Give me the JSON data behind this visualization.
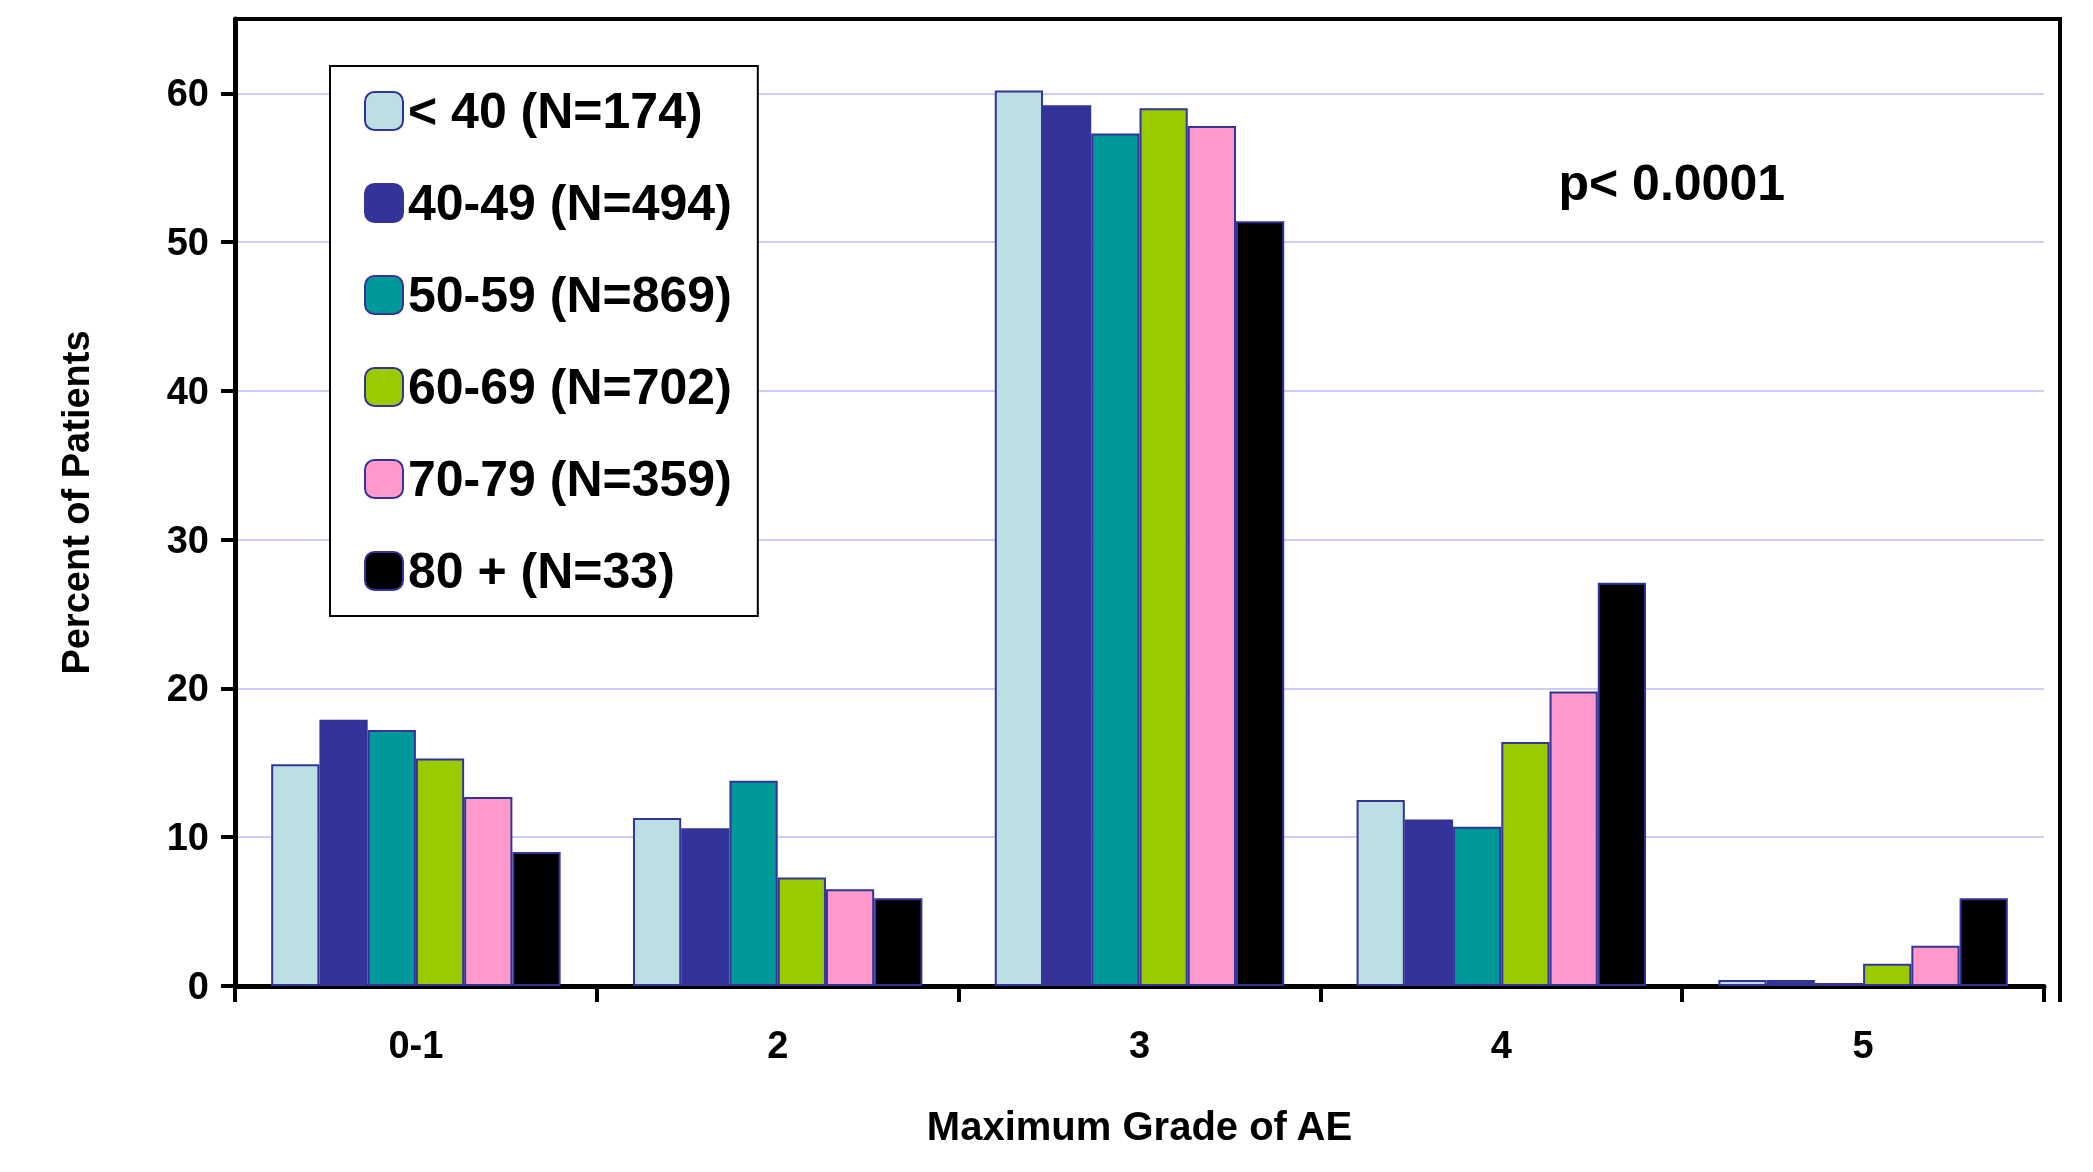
{
  "chart_data": {
    "type": "bar",
    "xlabel": "Maximum Grade of AE",
    "ylabel": "Percent of Patients",
    "categories": [
      "0-1",
      "2",
      "3",
      "4",
      "5"
    ],
    "series": [
      {
        "name": "< 40 (N=174)",
        "color": "#bbdfe3",
        "values": [
          14.9,
          11.3,
          60.2,
          12.5,
          0.4
        ]
      },
      {
        "name": "40-49 (N=494)",
        "color": "#333399",
        "values": [
          17.9,
          10.6,
          59.2,
          11.2,
          0.4
        ]
      },
      {
        "name": "50-59 (N=869)",
        "color": "#009999",
        "values": [
          17.2,
          13.8,
          57.3,
          10.7,
          0.2
        ]
      },
      {
        "name": "60-69 (N=702)",
        "color": "#99cc00",
        "values": [
          15.3,
          7.3,
          59.0,
          16.4,
          1.5
        ]
      },
      {
        "name": "70-79 (N=359)",
        "color": "#ff99cc",
        "values": [
          12.7,
          6.5,
          57.8,
          19.8,
          2.7
        ]
      },
      {
        "name": "80 + (N=33)",
        "color": "#000000",
        "values": [
          9.0,
          5.9,
          51.4,
          27.1,
          5.9
        ]
      }
    ],
    "ylim": [
      0,
      65
    ],
    "yticks": [
      0,
      10,
      20,
      30,
      40,
      50,
      60
    ],
    "grid": "y",
    "legend": "top left",
    "annotations": [
      "p< 0.0001"
    ]
  }
}
